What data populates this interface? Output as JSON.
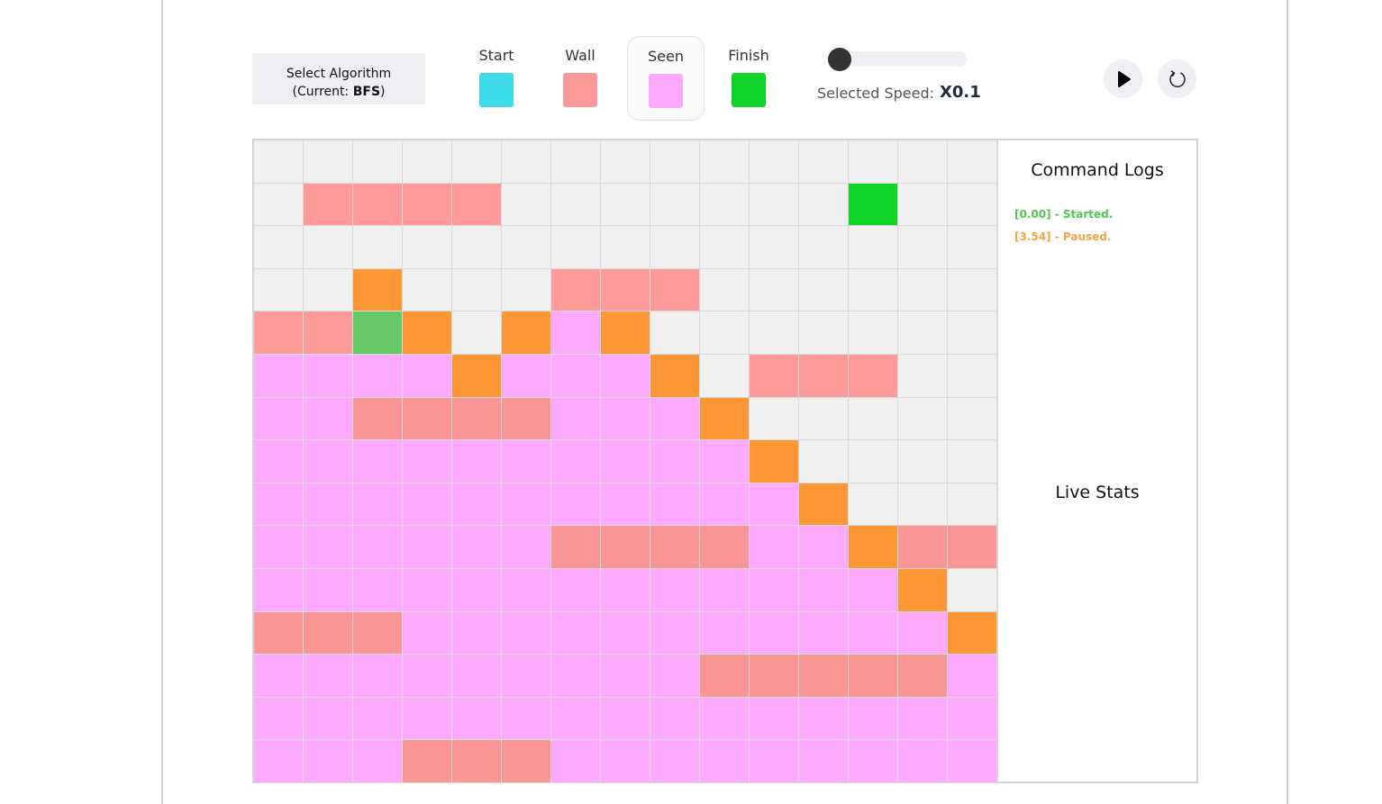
{
  "controls": {
    "algorithm_button": {
      "line1": "Select Algorithm",
      "prefix": "(Current: ",
      "algorithm": "BFS",
      "suffix": ")"
    },
    "legend": [
      {
        "label": "Start",
        "color": "#3ddbe7",
        "selected": false
      },
      {
        "label": "Wall",
        "color": "#ff9a9a",
        "selected": false
      },
      {
        "label": "Seen",
        "color": "#fda9fd",
        "selected": true
      },
      {
        "label": "Finish",
        "color": "#11d428",
        "selected": false
      }
    ],
    "speed": {
      "label": "Selected Speed:",
      "value_text": "X0.1",
      "slider_fraction": 0
    },
    "play_button": {
      "icon": "play-icon"
    },
    "reset_button": {
      "icon": "reset-icon"
    }
  },
  "grid": {
    "rows": 15,
    "cols": 15,
    "colors": {
      "E": "#f0f0f0",
      "W": "#ff9a9a",
      "S": "#fda9fd",
      "X": "#fa9696",
      "F": "#11d428",
      "O": "#fd9736",
      "C": "#66c866"
    },
    "legend_of_codes": {
      "E": "empty",
      "W": "wall",
      "S": "seen",
      "X": "seen-wall",
      "F": "finish",
      "O": "frontier",
      "C": "current"
    },
    "cells": [
      "EEEEEEEEEEEEEEE",
      "EWWWWEEEEEEEFEE",
      "EEEEEEEEEEEEEEE",
      "EEOEEEWWWEEEEEE",
      "WWCOEOSOEEEEEEE",
      "SSSSOSSSOEWWWEE",
      "SSXXXXSSSOEEEEE",
      "SSSSSSSSSSOEEEE",
      "SSSSSSSSSSSOEEE",
      "SSSSSSXXXXSSOXX",
      "SSSSSSSSSSSSSOE",
      "XXXSSSSSSSSSSSO",
      "SSSSSSSSSXXXXXS",
      "SSSSSSSSSSSSSSS",
      "SSSXXXSSSSSSSSS"
    ]
  },
  "side_panel": {
    "logs_title": "Command Logs",
    "logs": [
      {
        "text": "[0.00] - Started.",
        "color": "#4cc94c"
      },
      {
        "text": "[3.54] - Paused.",
        "color": "#f5a442"
      }
    ],
    "stats_title": "Live Stats"
  }
}
